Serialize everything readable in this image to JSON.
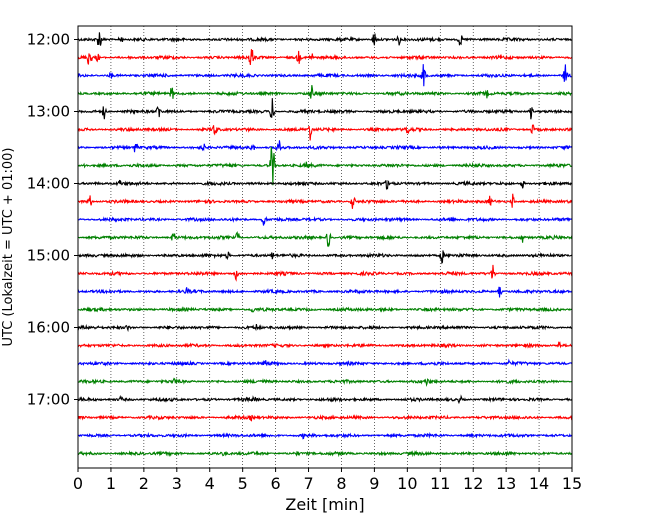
{
  "chart_data": {
    "type": "line",
    "title": "",
    "xlabel": "Zeit  [min]",
    "ylabel": "UTC (Lokalzeit = UTC + 01:00)",
    "xlim": [
      0,
      15
    ],
    "x_ticks": [
      "0",
      "1",
      "2",
      "3",
      "4",
      "5",
      "6",
      "7",
      "8",
      "9",
      "10",
      "11",
      "12",
      "13",
      "14",
      "15"
    ],
    "y_ticks": [
      "12:00",
      "13:00",
      "14:00",
      "15:00",
      "16:00",
      "17:00"
    ],
    "trace_colors": [
      "#000000",
      "#ff0000",
      "#0000ff",
      "#008000"
    ],
    "grid": "vertical dotted at each minute",
    "traces": [
      {
        "start": "12:00",
        "color": "#000000",
        "spikes": [
          [
            0.65,
            13
          ],
          [
            1.3,
            6
          ],
          [
            9.0,
            10
          ],
          [
            9.75,
            6
          ],
          [
            11.6,
            9
          ]
        ]
      },
      {
        "start": "12:15",
        "color": "#ff0000",
        "spikes": [
          [
            0.35,
            14
          ],
          [
            0.6,
            5
          ],
          [
            5.25,
            18
          ],
          [
            6.7,
            8
          ],
          [
            7.1,
            6
          ]
        ]
      },
      {
        "start": "12:30",
        "color": "#0000ff",
        "spikes": [
          [
            1.0,
            5
          ],
          [
            10.5,
            14
          ],
          [
            14.8,
            12
          ]
        ]
      },
      {
        "start": "12:45",
        "color": "#008000",
        "spikes": [
          [
            2.85,
            9
          ],
          [
            7.1,
            9
          ],
          [
            12.4,
            6
          ]
        ]
      },
      {
        "start": "13:00",
        "color": "#000000",
        "spikes": [
          [
            0.8,
            9
          ],
          [
            2.45,
            10
          ],
          [
            5.9,
            14
          ],
          [
            13.75,
            8
          ]
        ]
      },
      {
        "start": "13:15",
        "color": "#ff0000",
        "spikes": [
          [
            4.15,
            10
          ],
          [
            7.05,
            12
          ],
          [
            10.0,
            8
          ],
          [
            13.8,
            6
          ]
        ]
      },
      {
        "start": "13:30",
        "color": "#0000ff",
        "spikes": [
          [
            1.75,
            8
          ],
          [
            3.8,
            6
          ],
          [
            5.3,
            6
          ],
          [
            6.1,
            10
          ]
        ]
      },
      {
        "start": "13:45",
        "color": "#008000",
        "spikes": [
          [
            5.9,
            30
          ],
          [
            0.2,
            5
          ],
          [
            6.95,
            5
          ]
        ]
      },
      {
        "start": "14:00",
        "color": "#000000",
        "spikes": [
          [
            1.25,
            6
          ],
          [
            9.4,
            8
          ],
          [
            13.5,
            5
          ]
        ]
      },
      {
        "start": "14:15",
        "color": "#ff0000",
        "spikes": [
          [
            0.35,
            9
          ],
          [
            8.35,
            10
          ],
          [
            12.5,
            6
          ],
          [
            13.2,
            8
          ]
        ]
      },
      {
        "start": "14:30",
        "color": "#0000ff",
        "spikes": [
          [
            5.65,
            8
          ],
          [
            11.3,
            5
          ]
        ]
      },
      {
        "start": "14:45",
        "color": "#008000",
        "spikes": [
          [
            2.9,
            7
          ],
          [
            4.85,
            7
          ],
          [
            7.6,
            12
          ],
          [
            13.5,
            6
          ]
        ]
      },
      {
        "start": "15:00",
        "color": "#000000",
        "spikes": [
          [
            4.55,
            5
          ],
          [
            5.9,
            5
          ],
          [
            11.05,
            9
          ]
        ]
      },
      {
        "start": "15:15",
        "color": "#ff0000",
        "spikes": [
          [
            4.8,
            7
          ],
          [
            12.6,
            10
          ]
        ]
      },
      {
        "start": "15:30",
        "color": "#0000ff",
        "spikes": [
          [
            3.3,
            5
          ],
          [
            12.8,
            6
          ]
        ]
      },
      {
        "start": "15:45",
        "color": "#008000",
        "spikes": [
          [
            5.3,
            4
          ]
        ]
      },
      {
        "start": "16:00",
        "color": "#000000",
        "spikes": [
          [
            1.5,
            4
          ],
          [
            5.4,
            5
          ]
        ]
      },
      {
        "start": "16:15",
        "color": "#ff0000",
        "spikes": [
          [
            14.6,
            5
          ]
        ]
      },
      {
        "start": "16:30",
        "color": "#0000ff",
        "spikes": [
          [
            5.7,
            5
          ],
          [
            13.1,
            4
          ]
        ]
      },
      {
        "start": "16:45",
        "color": "#008000",
        "spikes": [
          [
            2.95,
            5
          ],
          [
            10.6,
            5
          ]
        ]
      },
      {
        "start": "17:00",
        "color": "#000000",
        "spikes": [
          [
            1.3,
            4
          ],
          [
            5.35,
            4
          ],
          [
            11.6,
            5
          ]
        ]
      },
      {
        "start": "17:15",
        "color": "#ff0000",
        "spikes": [
          [
            5.25,
            4
          ]
        ]
      },
      {
        "start": "17:30",
        "color": "#0000ff",
        "spikes": [
          [
            6.85,
            4
          ]
        ]
      },
      {
        "start": "17:45",
        "color": "#008000",
        "spikes": [
          [
            4.4,
            4
          ],
          [
            6.65,
            3
          ]
        ]
      }
    ]
  }
}
